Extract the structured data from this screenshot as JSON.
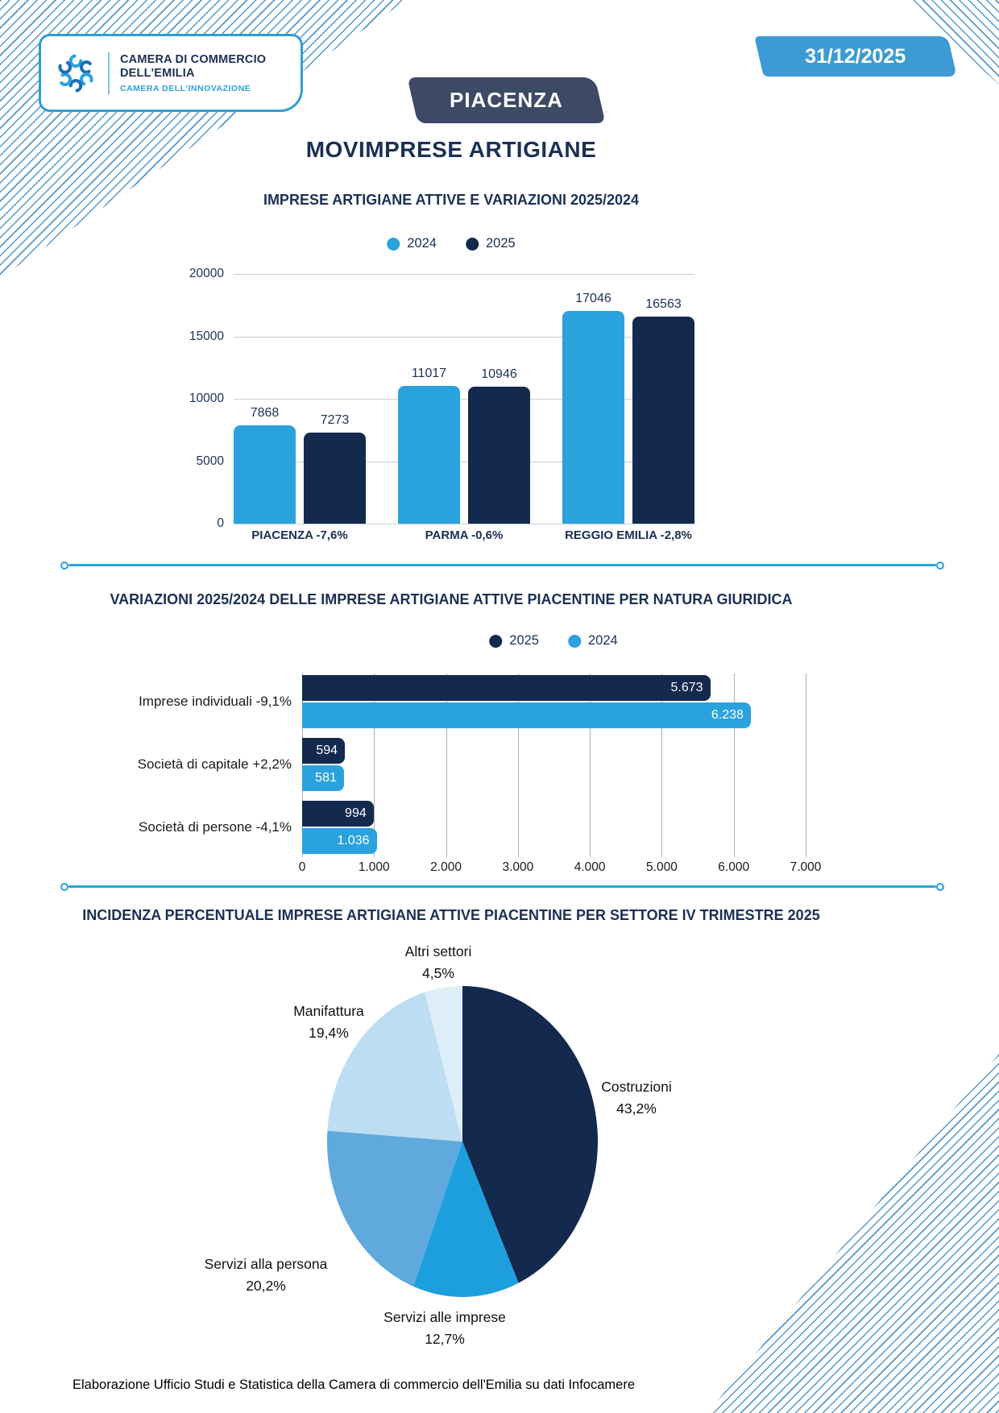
{
  "header": {
    "logo": {
      "line1": "CAMERA DI COMMERCIO",
      "line2": "DELL'EMILIA",
      "line3": "CAMERA DELL'INNOVAZIONE"
    },
    "province_banner": "PIACENZA",
    "date_badge": "31/12/2025",
    "main_title": "MOVIMPRESE ARTIGIANE"
  },
  "colors": {
    "light_blue": "#2AA2DE",
    "dark_navy": "#14294E",
    "title_navy": "#1A3055",
    "badge_blue": "#3D9BD3",
    "banner_navy": "#3D4A66",
    "stripe_blue": "#5496C8",
    "divider_blue": "#29A2DC",
    "pie_medium_blue": "#1D9FDE",
    "pie_light_blue": "#5FA9DC",
    "pie_pale_blue": "#BCDDF2",
    "pie_palest_blue": "#DEEEF8"
  },
  "chart_data": [
    {
      "type": "bar",
      "title": "IMPRESE ARTIGIANE ATTIVE E VARIAZIONI 2025/2024",
      "legend": [
        "2024",
        "2025"
      ],
      "legend_position": "top",
      "grid": true,
      "categories": [
        "PIACENZA -7,6%",
        "PARMA -0,6%",
        "REGGIO EMILIA -2,8%"
      ],
      "series": [
        {
          "name": "2024",
          "color": "#2AA2DE",
          "values": [
            7868,
            11017,
            17046
          ],
          "labels": [
            "7868",
            "11017",
            "17046"
          ]
        },
        {
          "name": "2025",
          "color": "#14294E",
          "values": [
            7273,
            10946,
            16563
          ],
          "labels": [
            "7273",
            "10946",
            "16563"
          ]
        }
      ],
      "ylim": [
        0,
        20000
      ],
      "yticks": [
        0,
        5000,
        10000,
        15000,
        20000
      ]
    },
    {
      "type": "bar-horizontal",
      "title": "VARIAZIONI 2025/2024 DELLE IMPRESE ARTIGIANE ATTIVE PIACENTINE PER NATURA GIURIDICA",
      "legend": [
        "2025",
        "2024"
      ],
      "legend_position": "top",
      "grid": true,
      "categories": [
        "Imprese individuali -9,1%",
        "Società di capitale +2,2%",
        "Società di persone -4,1%"
      ],
      "series": [
        {
          "name": "2025",
          "color": "#14294E",
          "values": [
            5673,
            594,
            994
          ],
          "labels": [
            "5.673",
            "594",
            "994"
          ]
        },
        {
          "name": "2024",
          "color": "#2AA2DE",
          "values": [
            6238,
            581,
            1036
          ],
          "labels": [
            "6.238",
            "581",
            "1.036"
          ]
        }
      ],
      "xlim": [
        0,
        7000
      ],
      "xtick_labels": [
        "0",
        "1.000",
        "2.000",
        "3.000",
        "4.000",
        "5.000",
        "6.000",
        "7.000"
      ]
    },
    {
      "type": "pie",
      "title": "INCIDENZA PERCENTUALE IMPRESE ARTIGIANE ATTIVE PIACENTINE PER SETTORE IV TRIMESTRE 2025",
      "start_angle_deg": 0,
      "direction": "clockwise",
      "slices": [
        {
          "label": "Costruzioni",
          "pct": 43.2,
          "pct_label": "43,2%",
          "color": "#14294E"
        },
        {
          "label": "Servizi alle imprese",
          "pct": 12.7,
          "pct_label": "12,7%",
          "color": "#1D9FDE"
        },
        {
          "label": "Servizi alla persona",
          "pct": 20.2,
          "pct_label": "20,2%",
          "color": "#5FA9DC"
        },
        {
          "label": "Manifattura",
          "pct": 19.4,
          "pct_label": "19,4%",
          "color": "#BCDDF2"
        },
        {
          "label": "Altri settori",
          "pct": 4.5,
          "pct_label": "4,5%",
          "color": "#DEEEF8"
        }
      ]
    }
  ],
  "footer": {
    "text": "Elaborazione Ufficio Studi e Statistica della Camera di commercio dell'Emilia su dati Infocamere"
  }
}
